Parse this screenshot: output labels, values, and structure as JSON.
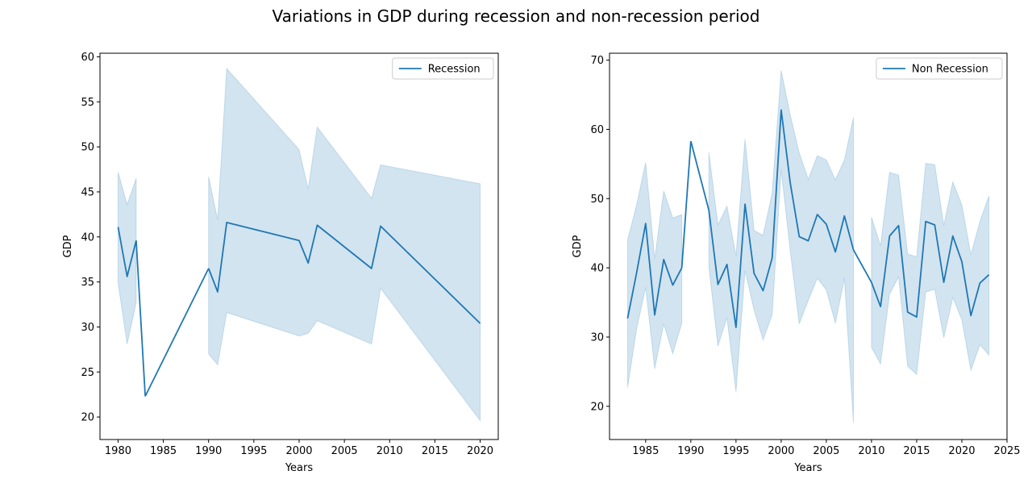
{
  "figure": {
    "title": "Variations in GDP during recession and non-recession period"
  },
  "colors": {
    "line": "#1f77b4",
    "band": "#1f77b4"
  },
  "chart_data": [
    {
      "type": "line",
      "title": "",
      "xlabel": "Years",
      "ylabel": "GDP",
      "xlim": [
        1978,
        2022
      ],
      "ylim": [
        17.5,
        60.4
      ],
      "xticks": [
        1980,
        1985,
        1990,
        1995,
        2000,
        2005,
        2010,
        2015,
        2020
      ],
      "yticks": [
        20,
        25,
        30,
        35,
        40,
        45,
        50,
        55,
        60
      ],
      "legend": {
        "position": "top-right"
      },
      "grid": false,
      "series": [
        {
          "name": "Recession",
          "segments": [
            {
              "x": [
                1980,
                1981,
                1982
              ],
              "y": [
                41.1,
                35.6,
                39.6
              ],
              "lower": [
                34.9,
                28.1,
                32.7
              ],
              "upper": [
                47.2,
                43.6,
                46.5
              ]
            },
            {
              "x": [
                1983
              ],
              "y": [
                22.3
              ],
              "lower": [
                22.3
              ],
              "upper": [
                22.3
              ]
            },
            {
              "x": [
                1990,
                1991,
                1992,
                2000,
                2001,
                2002,
                2008,
                2009,
                2020
              ],
              "y": [
                36.5,
                33.9,
                41.6,
                39.6,
                37.1,
                41.3,
                36.5,
                41.2,
                30.4
              ],
              "lower": [
                27.0,
                25.8,
                31.6,
                29.0,
                29.3,
                30.7,
                28.1,
                34.3,
                19.6
              ],
              "upper": [
                46.7,
                41.9,
                58.7,
                49.7,
                45.3,
                52.2,
                44.3,
                48.0,
                45.9
              ]
            }
          ],
          "bridges": [
            {
              "x": [
                1982,
                1983
              ],
              "y": [
                39.6,
                22.3
              ]
            },
            {
              "x": [
                1983,
                1990
              ],
              "y": [
                22.3,
                36.5
              ]
            }
          ]
        }
      ]
    },
    {
      "type": "line",
      "title": "",
      "xlabel": "Years",
      "ylabel": "GDP",
      "xlim": [
        1981,
        2025
      ],
      "ylim": [
        15.2,
        71
      ],
      "xticks": [
        1985,
        1990,
        1995,
        2000,
        2005,
        2010,
        2015,
        2020,
        2025
      ],
      "yticks": [
        20,
        30,
        40,
        50,
        60,
        70
      ],
      "legend": {
        "position": "top-right"
      },
      "grid": false,
      "series": [
        {
          "name": "Non Recession",
          "segments": [
            {
              "x": [
                1983,
                1984,
                1985,
                1986,
                1987,
                1988,
                1989
              ],
              "y": [
                32.7,
                39.3,
                46.4,
                33.2,
                41.2,
                37.5,
                40.0
              ],
              "lower": [
                22.7,
                31.2,
                37.2,
                25.4,
                31.9,
                27.6,
                32.0
              ],
              "upper": [
                44.0,
                49.1,
                55.2,
                41.3,
                51.1,
                47.2,
                47.7
              ]
            },
            {
              "x": [
                1990
              ],
              "y": [
                58.3
              ],
              "lower": [
                58.3
              ],
              "upper": [
                58.3
              ]
            },
            {
              "x": [
                1992,
                1993,
                1994,
                1995,
                1996,
                1997,
                1998,
                1999,
                2000,
                2001,
                2002,
                2003,
                2004,
                2005,
                2006,
                2007,
                2008
              ],
              "y": [
                48.3,
                37.6,
                40.5,
                31.4,
                49.2,
                39.2,
                36.7,
                41.4,
                62.8,
                52.3,
                44.5,
                43.9,
                47.7,
                46.3,
                42.3,
                47.5,
                42.6
              ],
              "lower": [
                40.1,
                28.7,
                32.8,
                22.1,
                39.6,
                33.9,
                29.6,
                33.2,
                54.2,
                42.5,
                31.9,
                35.3,
                38.5,
                36.8,
                32.0,
                38.5,
                17.6
              ],
              "upper": [
                56.7,
                46.2,
                48.9,
                41.7,
                58.6,
                45.4,
                44.7,
                50.8,
                68.5,
                62.1,
                56.6,
                52.8,
                56.2,
                55.6,
                52.7,
                55.6,
                61.7
              ]
            },
            {
              "x": [
                2010,
                2011,
                2012,
                2013,
                2014,
                2015,
                2016,
                2017,
                2018,
                2019,
                2020,
                2021,
                2022,
                2023
              ],
              "y": [
                37.9,
                34.4,
                44.6,
                46.1,
                33.6,
                32.9,
                46.7,
                46.2,
                37.9,
                44.6,
                40.9,
                33.1,
                37.8,
                39.0
              ],
              "lower": [
                28.5,
                26.1,
                36.2,
                38.7,
                25.8,
                24.6,
                36.5,
                36.9,
                29.9,
                35.7,
                32.5,
                25.2,
                28.9,
                27.4
              ],
              "upper": [
                47.3,
                43.2,
                53.8,
                53.4,
                42.0,
                41.6,
                55.1,
                54.9,
                46.1,
                52.4,
                49.1,
                41.9,
                46.7,
                50.4
              ]
            }
          ],
          "bridges": [
            {
              "x": [
                1989,
                1990
              ],
              "y": [
                40.0,
                58.3
              ]
            },
            {
              "x": [
                1990,
                1992
              ],
              "y": [
                58.3,
                48.3
              ]
            },
            {
              "x": [
                2008,
                2010
              ],
              "y": [
                42.6,
                37.9
              ]
            }
          ]
        }
      ]
    }
  ]
}
